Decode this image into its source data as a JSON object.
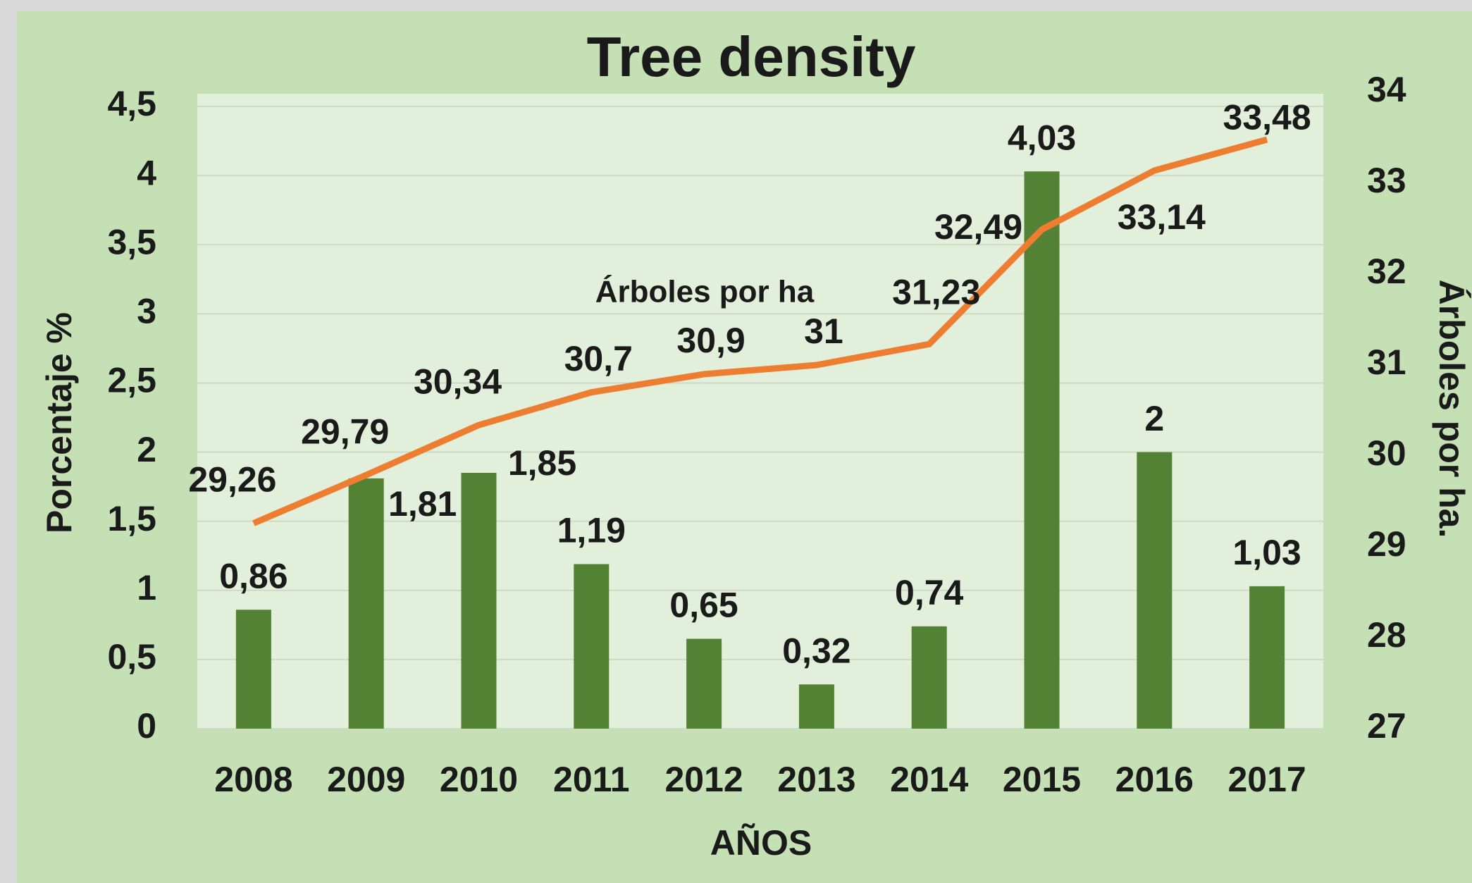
{
  "chart_data": {
    "type": "bar",
    "title": "Tree density",
    "x_label": "AÑOS",
    "y_label": "Porcentaje %",
    "y2_label": "Árboles por ha.",
    "categories": [
      "2008",
      "2009",
      "2010",
      "2011",
      "2012",
      "2013",
      "2014",
      "2015",
      "2016",
      "2017"
    ],
    "series": [
      {
        "type": "bar",
        "color": "#548235",
        "values": [
          0.86,
          1.81,
          1.85,
          1.19,
          0.65,
          0.32,
          0.74,
          4.03,
          2,
          1.03
        ],
        "value_labels": [
          "0,86",
          "1,81",
          "1,85",
          "1,19",
          "0,65",
          "0,32",
          "0,74",
          "4,03",
          "2",
          "1,03"
        ]
      },
      {
        "type": "line",
        "name": "Árboles por ha",
        "color": "#ed7d31",
        "axis": "y2",
        "values": [
          29.26,
          29.79,
          30.34,
          30.7,
          30.9,
          31,
          31.23,
          32.49,
          33.14,
          33.48
        ],
        "value_labels": [
          "29,26",
          "29,79",
          "30,34",
          "30,7",
          "30,9",
          "31",
          "31,23",
          "32,49",
          "33,14",
          "33,48"
        ]
      }
    ],
    "ylim": [
      0,
      4.5
    ],
    "yticks": [
      0,
      {
        "value": 0.5,
        "label": "0,5"
      },
      1,
      {
        "value": 1.5,
        "label": "1,5"
      },
      2,
      {
        "value": 2.5,
        "label": "2,5"
      },
      3,
      {
        "value": 3.5,
        "label": "3,5"
      },
      4,
      {
        "value": 4.5,
        "label": "4,5"
      }
    ],
    "y2lim": [
      27,
      34
    ],
    "y2ticks": [
      27,
      28,
      29,
      30,
      31,
      32,
      33,
      34
    ],
    "grid": true
  }
}
